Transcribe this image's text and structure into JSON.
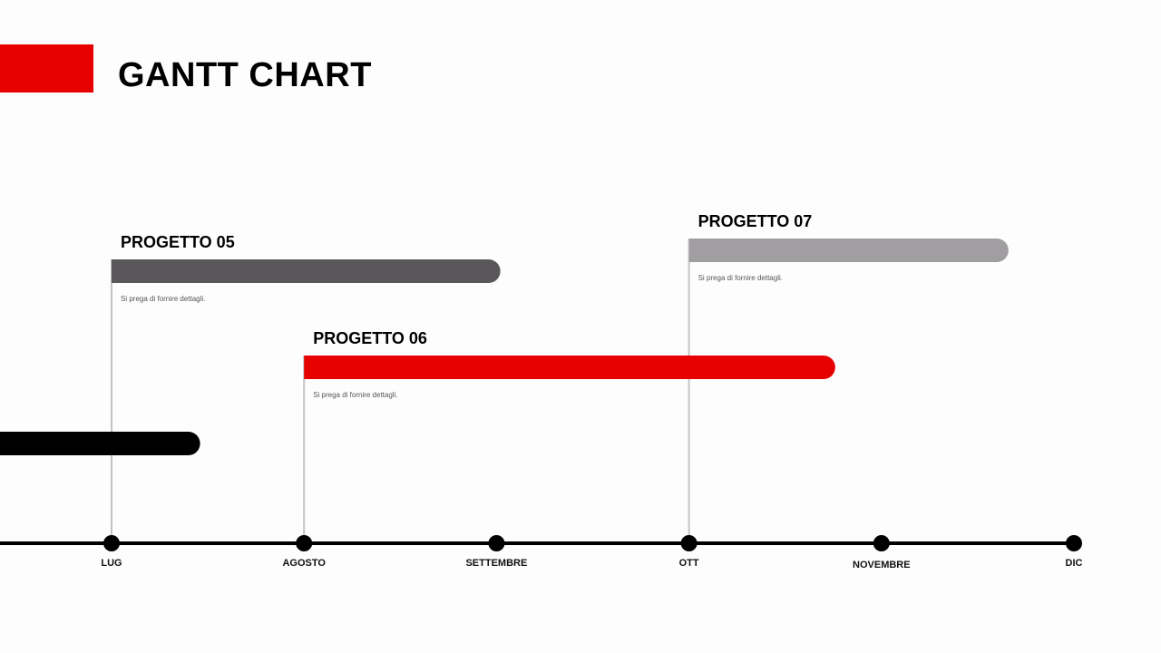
{
  "title": "GANTT CHART",
  "colors": {
    "accent": "#e60000",
    "axis": "#000000",
    "connector": "#c4c4c4",
    "background": "#fdfdfd"
  },
  "chart_data": {
    "type": "gantt",
    "title": "GANTT CHART",
    "x_axis": {
      "ticks": [
        "LUG",
        "AGOSTO",
        "SETTEMBRE",
        "OTT",
        "NOVEMBRE",
        "DIC"
      ],
      "range": [
        -0.6,
        5.0
      ]
    },
    "tasks": [
      {
        "name": "",
        "start": -0.6,
        "end": 0.46,
        "color": "#000000",
        "desc": ""
      },
      {
        "name": "PROGETTO 05",
        "start": 0.0,
        "end": 2.02,
        "color": "#59575a",
        "desc": "Si prega di fornire dettagli."
      },
      {
        "name": "PROGETTO 06",
        "start": 1.0,
        "end": 3.76,
        "color": "#e60000",
        "desc": "Si prega di fornire dettagli."
      },
      {
        "name": "PROGETTO 07",
        "start": 3.0,
        "end": 4.66,
        "color": "#a09ea1",
        "desc": "Si prega di fornire dettagli."
      }
    ]
  }
}
